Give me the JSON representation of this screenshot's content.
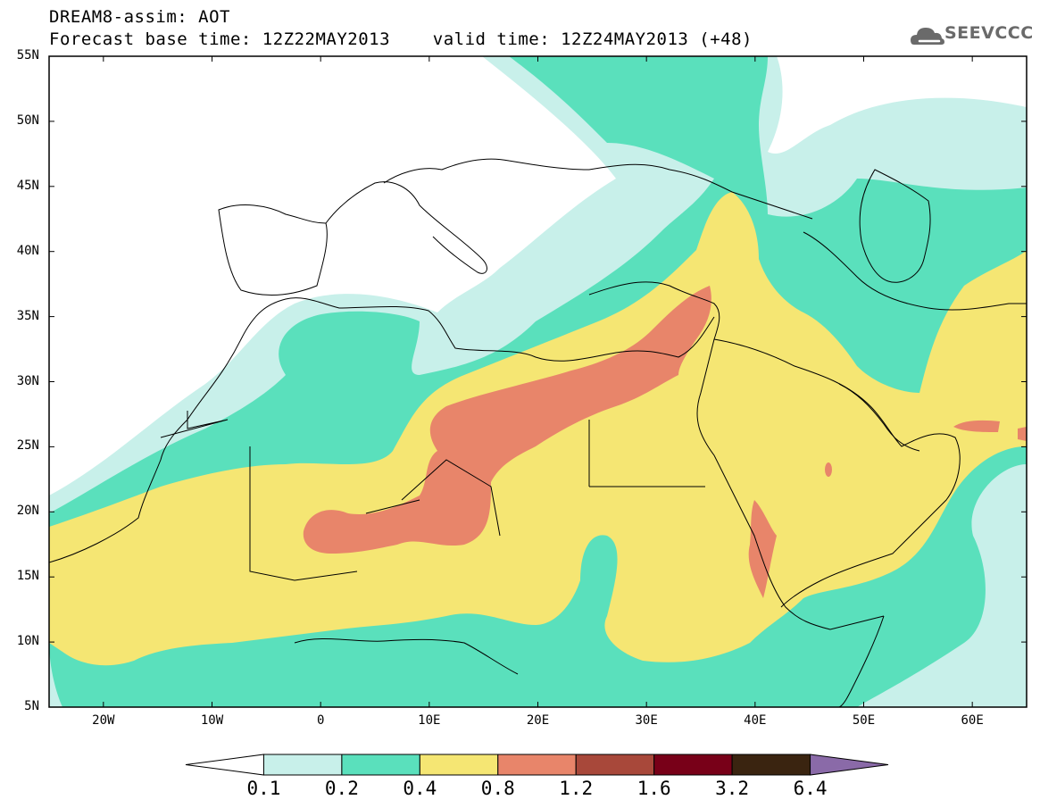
{
  "header": {
    "title_line1": "DREAM8-assim: AOT",
    "title_line2": "Forecast base time: 12Z22MAY2013    valid time: 12Z24MAY2013 (+48)",
    "logo_text": "SEEVCCC",
    "logo_icon": "cloud-icon"
  },
  "axes": {
    "lat_labels": [
      "55N",
      "50N",
      "45N",
      "40N",
      "35N",
      "30N",
      "25N",
      "20N",
      "15N",
      "10N",
      "5N"
    ],
    "lon_labels": [
      "20W",
      "10W",
      "0",
      "10E",
      "20E",
      "30E",
      "40E",
      "50E",
      "60E"
    ],
    "lat_range": [
      5,
      55
    ],
    "lon_range": [
      -25,
      65
    ]
  },
  "colorbar": {
    "labels": [
      "0.1",
      "0.2",
      "0.4",
      "0.8",
      "1.2",
      "1.6",
      "3.2",
      "6.4"
    ],
    "colors": [
      "#ffffff",
      "#c8f0ea",
      "#5ae0bc",
      "#f5e673",
      "#e8856a",
      "#a8483a",
      "#780018",
      "#3a2410",
      "#8a6aa8"
    ]
  },
  "field_colors": {
    "aot_0_1": "#c8f0ea",
    "aot_0_2": "#5ae0bc",
    "aot_0_4": "#f5e673",
    "aot_0_8": "#e8856a"
  }
}
